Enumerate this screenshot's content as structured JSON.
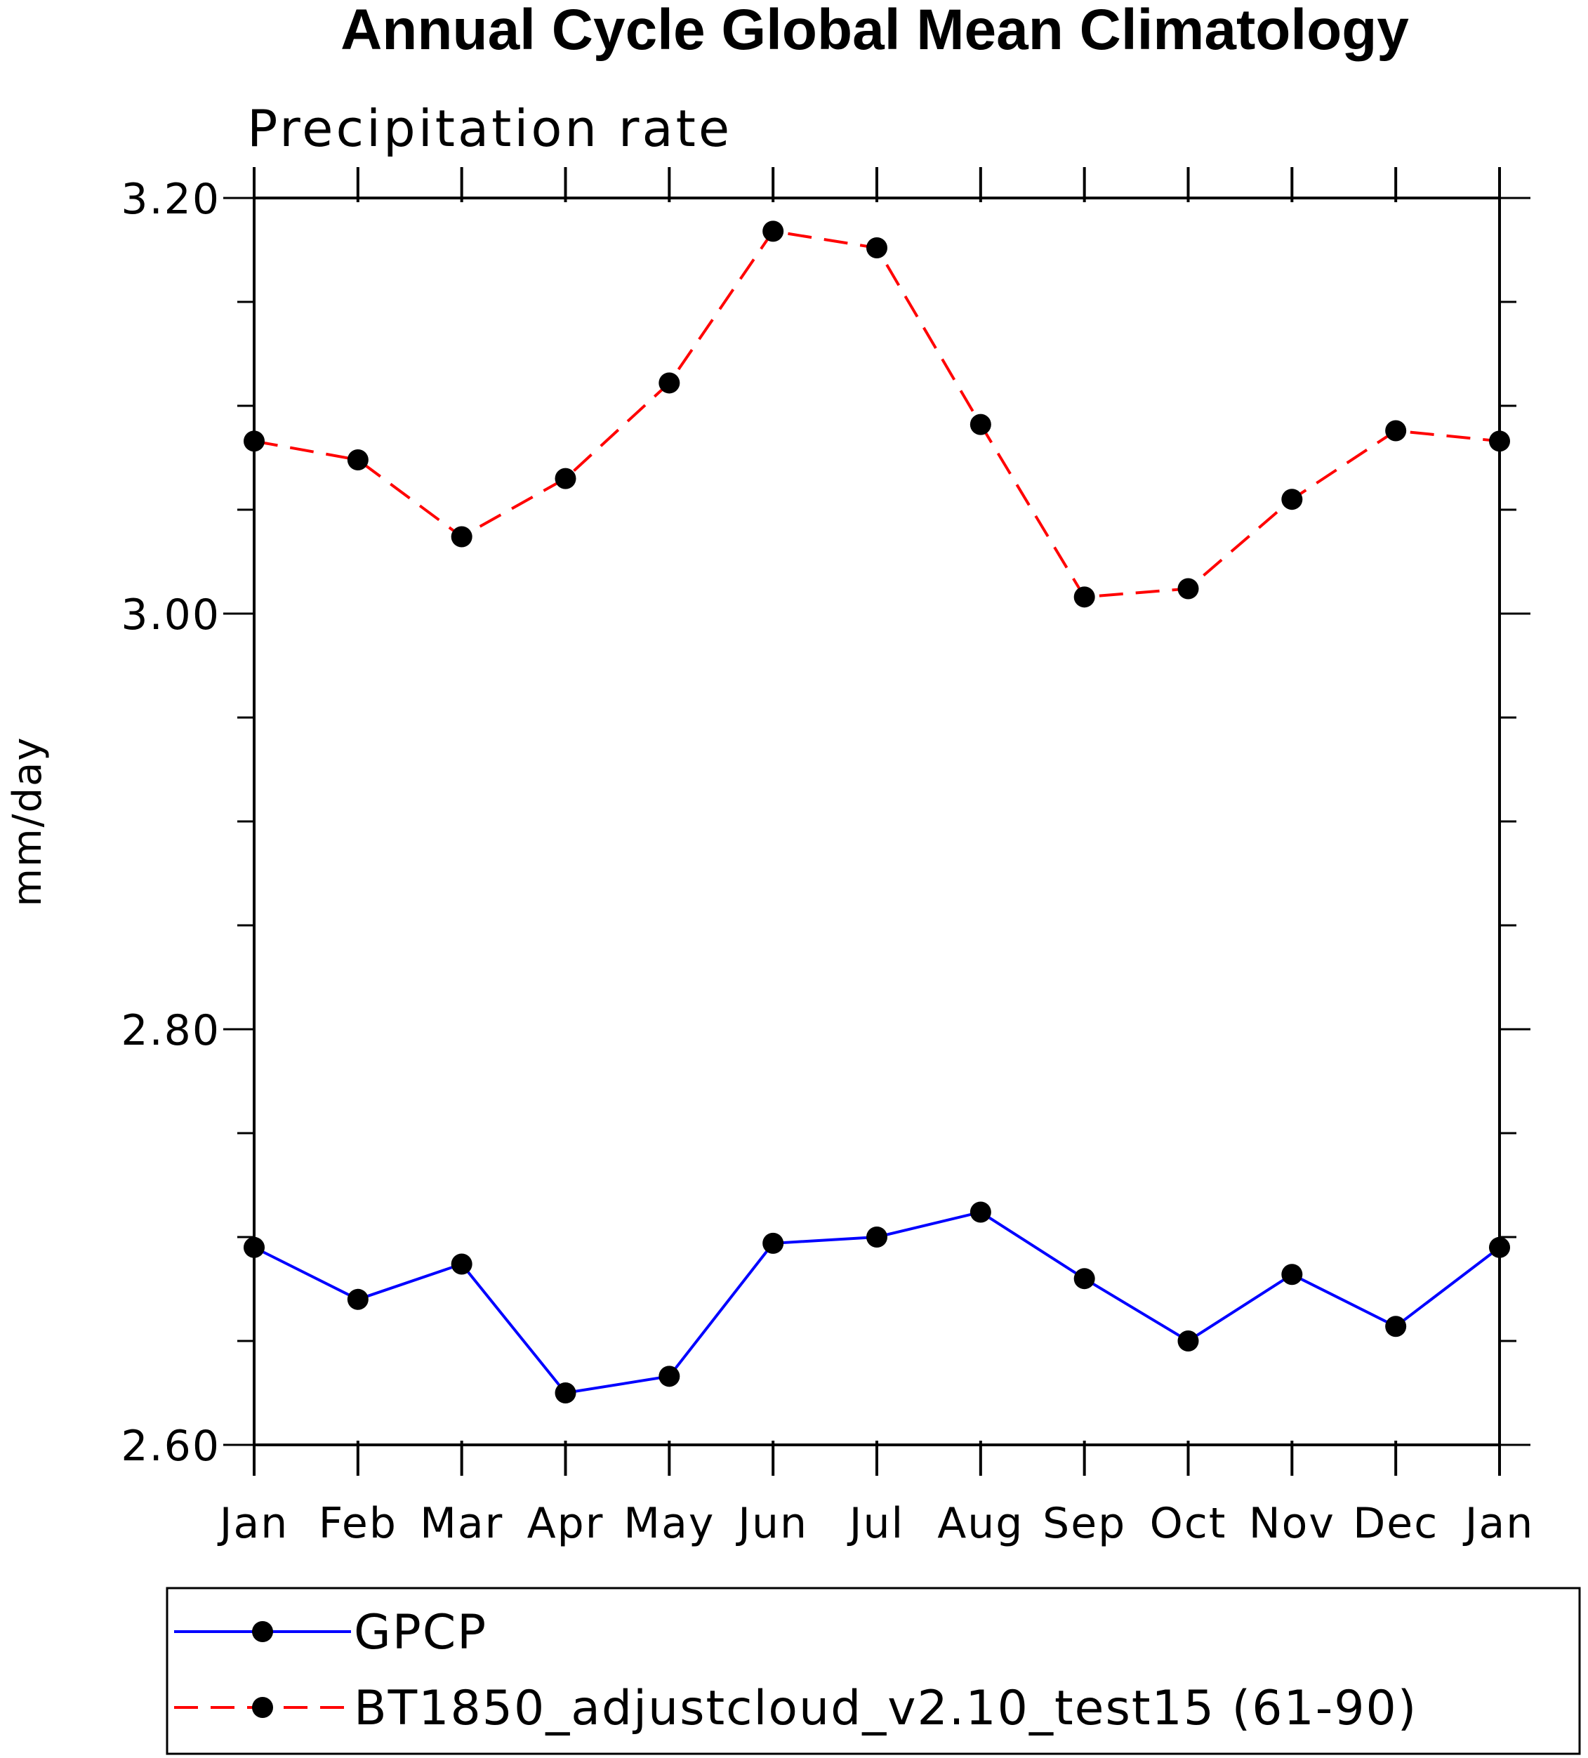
{
  "chart_data": {
    "type": "line",
    "title": "Annual Cycle Global Mean Climatology",
    "subtitle": "Precipitation rate",
    "ylabel": "mm/day",
    "xlabel": "",
    "categories": [
      "Jan",
      "Feb",
      "Mar",
      "Apr",
      "May",
      "Jun",
      "Jul",
      "Aug",
      "Sep",
      "Oct",
      "Nov",
      "Dec",
      "Jan"
    ],
    "ylim": [
      2.6,
      3.2
    ],
    "y_ticks": [
      "2.60",
      "2.80",
      "3.00",
      "3.20"
    ],
    "grid": false,
    "legend_position": "bottom",
    "series": [
      {
        "name": "GPCP",
        "color": "#0000ff",
        "line_style": "solid",
        "marker": "filled-circle",
        "values": [
          2.695,
          2.67,
          2.687,
          2.625,
          2.633,
          2.697,
          2.7,
          2.712,
          2.68,
          2.65,
          2.682,
          2.657,
          2.695
        ]
      },
      {
        "name": "BT1850_adjustcloud_v2.10_test15 (61-90)",
        "color": "#ff0000",
        "line_style": "dashed",
        "marker": "filled-circle",
        "values": [
          3.083,
          3.074,
          3.037,
          3.065,
          3.111,
          3.184,
          3.176,
          3.091,
          3.008,
          3.012,
          3.055,
          3.088,
          3.083
        ]
      }
    ]
  }
}
